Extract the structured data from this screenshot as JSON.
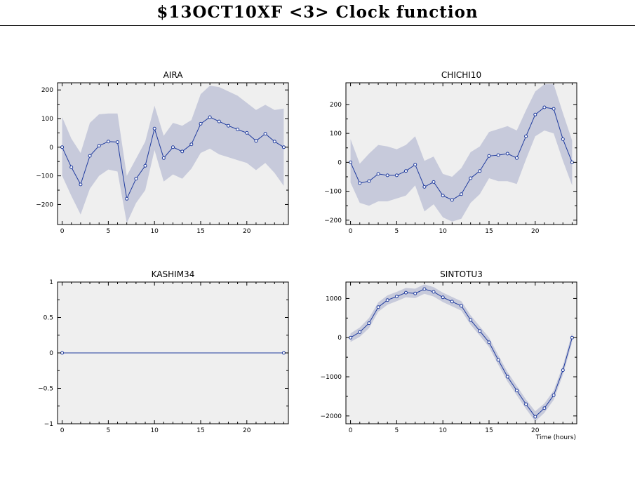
{
  "page": {
    "title": "$13OCT10XF <3>  Clock function",
    "xlabel_corner": "Time (hours)"
  },
  "colors": {
    "plot_bg": "#efefef",
    "band": "#c7cadb",
    "line": "#1f3b9e",
    "frame": "#000000"
  },
  "chart_data": [
    {
      "type": "line",
      "title": "AIRA",
      "x": [
        0,
        1,
        2,
        3,
        4,
        5,
        6,
        7,
        8,
        9,
        10,
        11,
        12,
        13,
        14,
        15,
        16,
        17,
        18,
        19,
        20,
        21,
        22,
        23,
        24
      ],
      "series": [
        {
          "values": [
            0,
            -70,
            -130,
            -30,
            5,
            20,
            18,
            -180,
            -110,
            -65,
            65,
            -38,
            0,
            -15,
            10,
            82,
            105,
            90,
            75,
            62,
            50,
            22,
            47,
            20,
            0
          ],
          "upper": [
            105,
            30,
            -20,
            85,
            115,
            118,
            118,
            -100,
            -40,
            20,
            145,
            40,
            85,
            75,
            95,
            185,
            215,
            210,
            195,
            180,
            155,
            130,
            148,
            130,
            135
          ],
          "lower": [
            -100,
            -170,
            -235,
            -145,
            -100,
            -78,
            -85,
            -265,
            -195,
            -150,
            -10,
            -120,
            -95,
            -110,
            -75,
            -20,
            -5,
            -25,
            -35,
            -45,
            -55,
            -80,
            -55,
            -90,
            -135
          ]
        }
      ],
      "xlim": [
        -0.5,
        24.5
      ],
      "ylim": [
        -270,
        225
      ],
      "xticks": [
        0,
        5,
        10,
        15,
        20
      ],
      "yticks": [
        -200,
        -100,
        0,
        100,
        200
      ],
      "ytick_labels": [
        "−200",
        "−100",
        "0",
        "100",
        "200"
      ],
      "grid": false
    },
    {
      "type": "line",
      "title": "CHICHI10",
      "x": [
        0,
        1,
        2,
        3,
        4,
        5,
        6,
        7,
        8,
        9,
        10,
        11,
        12,
        13,
        14,
        15,
        16,
        17,
        18,
        19,
        20,
        21,
        22,
        23,
        24
      ],
      "series": [
        {
          "values": [
            0,
            -72,
            -65,
            -40,
            -45,
            -45,
            -30,
            -8,
            -85,
            -68,
            -115,
            -130,
            -110,
            -55,
            -30,
            22,
            25,
            30,
            15,
            90,
            165,
            190,
            185,
            80,
            0
          ],
          "upper": [
            80,
            -5,
            30,
            60,
            55,
            45,
            60,
            90,
            5,
            20,
            -40,
            -50,
            -20,
            35,
            55,
            105,
            115,
            125,
            110,
            180,
            245,
            270,
            270,
            170,
            75
          ],
          "lower": [
            -70,
            -140,
            -150,
            -135,
            -135,
            -125,
            -115,
            -80,
            -170,
            -145,
            -190,
            -205,
            -195,
            -140,
            -110,
            -55,
            -65,
            -65,
            -75,
            10,
            90,
            110,
            100,
            5,
            -80
          ]
        }
      ],
      "xlim": [
        -0.5,
        24.5
      ],
      "ylim": [
        -215,
        275
      ],
      "xticks": [
        0,
        5,
        10,
        15,
        20
      ],
      "yticks": [
        -200,
        -100,
        0,
        100,
        200
      ],
      "ytick_labels": [
        "−200",
        "−100",
        "0",
        "100",
        "200"
      ],
      "grid": false
    },
    {
      "type": "line",
      "title": "KASHIM34",
      "x": [
        0,
        24
      ],
      "series": [
        {
          "values": [
            0,
            0
          ],
          "upper": [
            0,
            0
          ],
          "lower": [
            0,
            0
          ]
        }
      ],
      "xlim": [
        -0.5,
        24.5
      ],
      "ylim": [
        -1,
        1
      ],
      "xticks": [
        0,
        5,
        10,
        15,
        20
      ],
      "yticks": [
        -1,
        -0.5,
        0,
        0.5,
        1
      ],
      "ytick_labels": [
        "−1",
        "−0.5",
        "0",
        "0.5",
        "1"
      ],
      "grid": false
    },
    {
      "type": "line",
      "title": "SINTOTU3",
      "x": [
        0,
        1,
        2,
        3,
        4,
        5,
        6,
        7,
        8,
        9,
        10,
        11,
        12,
        13,
        14,
        15,
        16,
        17,
        18,
        19,
        20,
        21,
        22,
        23,
        24
      ],
      "series": [
        {
          "values": [
            0,
            140,
            370,
            780,
            960,
            1050,
            1150,
            1130,
            1240,
            1170,
            1030,
            920,
            810,
            450,
            170,
            -120,
            -570,
            -1000,
            -1350,
            -1700,
            -2020,
            -1800,
            -1470,
            -830,
            0
          ],
          "upper": [
            110,
            260,
            500,
            900,
            1080,
            1170,
            1270,
            1250,
            1360,
            1290,
            1150,
            1040,
            930,
            570,
            290,
            0,
            -450,
            -880,
            -1230,
            -1580,
            -1880,
            -1680,
            -1350,
            -710,
            120
          ],
          "lower": [
            -110,
            20,
            240,
            660,
            840,
            930,
            1030,
            1010,
            1120,
            1050,
            910,
            800,
            690,
            330,
            50,
            -240,
            -690,
            -1120,
            -1470,
            -1820,
            -2140,
            -1920,
            -1590,
            -950,
            -120
          ]
        }
      ],
      "xlim": [
        -0.5,
        24.5
      ],
      "ylim": [
        -2200,
        1420
      ],
      "xticks": [
        0,
        5,
        10,
        15,
        20
      ],
      "yticks": [
        -2000,
        -1000,
        0,
        1000
      ],
      "ytick_labels": [
        "−2000",
        "−1000",
        "0",
        "1000"
      ],
      "grid": false
    }
  ]
}
